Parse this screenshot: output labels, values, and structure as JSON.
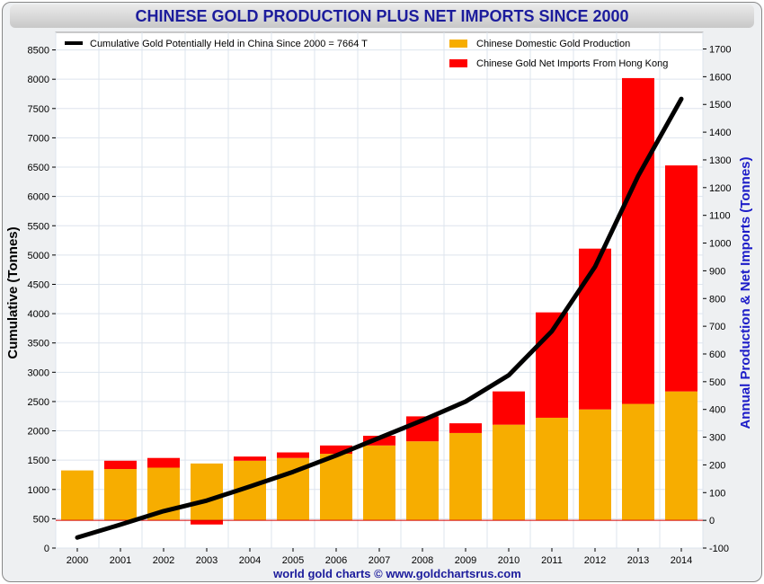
{
  "chart_data": {
    "type": "bar",
    "title": "CHINESE GOLD PRODUCTION PLUS NET IMPORTS SINCE 2000",
    "source_label": "world gold charts © www.goldchartsrus.com",
    "categories": [
      "2000",
      "2001",
      "2002",
      "2003",
      "2004",
      "2005",
      "2006",
      "2007",
      "2008",
      "2009",
      "2010",
      "2011",
      "2012",
      "2013",
      "2014"
    ],
    "ylabel_left": "Cumulative (Tonnes)",
    "ylabel_right": "Annual Production & Net Imports (Tonnes)",
    "ylim_left": [
      0,
      8800
    ],
    "ylim_right": [
      -100,
      1760
    ],
    "left_ticks": [
      "0",
      "500",
      "1000",
      "1500",
      "2000",
      "2500",
      "3000",
      "3500",
      "4000",
      "4500",
      "5000",
      "5500",
      "6000",
      "6500",
      "7000",
      "7500",
      "8000",
      "8500"
    ],
    "right_ticks": [
      "-100",
      "0",
      "100",
      "200",
      "300",
      "400",
      "500",
      "600",
      "700",
      "800",
      "900",
      "1000",
      "1100",
      "1200",
      "1300",
      "1400",
      "1500",
      "1600",
      "1700"
    ],
    "grid": true,
    "legend_placement": "top",
    "series": [
      {
        "name": "Chinese Domestic Gold Production",
        "axis": "right",
        "kind": "bar-stack",
        "color": "#f7ad00",
        "values": [
          180,
          185,
          190,
          205,
          215,
          225,
          240,
          270,
          285,
          315,
          345,
          370,
          400,
          420,
          465
        ]
      },
      {
        "name": "Chinese Gold Net Imports From Hong Kong",
        "axis": "right",
        "kind": "bar-stack",
        "color": "#ff0000",
        "values": [
          0,
          30,
          35,
          -15,
          15,
          20,
          30,
          35,
          90,
          35,
          120,
          380,
          580,
          1175,
          815
        ]
      },
      {
        "name": "Cumulative Gold Potentially Held in China Since 2000 = 7664 T",
        "axis": "left",
        "kind": "line",
        "color": "#000000",
        "values": [
          180,
          400,
          630,
          810,
          1050,
          1300,
          1580,
          1880,
          2180,
          2500,
          2950,
          3700,
          4800,
          6350,
          7664
        ]
      }
    ],
    "reference_line": {
      "axis": "right",
      "value": 0,
      "color": "#d40000"
    },
    "colors": {
      "axis_label_right": "#1c1cc8",
      "axis_label_left": "#000000",
      "grid": "#dde4ee",
      "plot_bg": "#ffffff",
      "title": "#1c1c9c",
      "source": "#1c1c9c"
    }
  }
}
